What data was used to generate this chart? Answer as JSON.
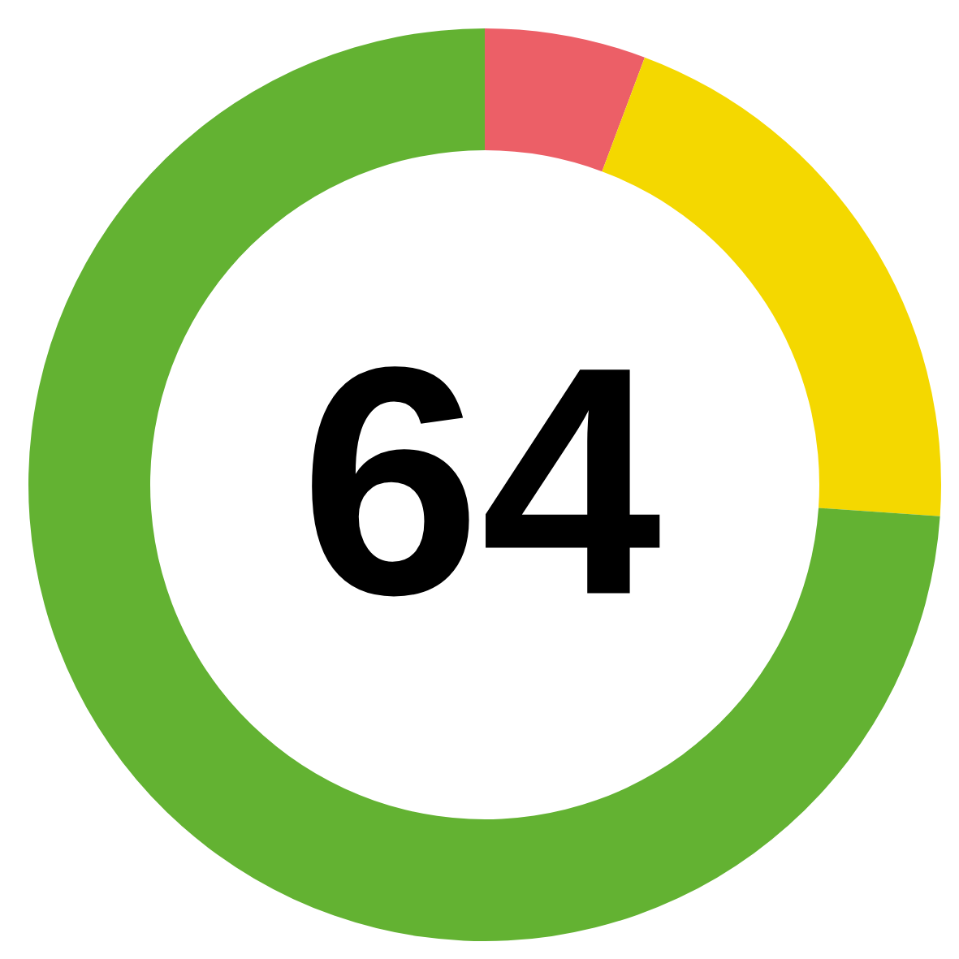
{
  "chart_data": {
    "type": "donut",
    "categories": [
      null,
      null,
      null
    ],
    "values": [
      5.7,
      20.4,
      73.9
    ],
    "colors": [
      "#ec5f67",
      "#f4d800",
      "#63b232"
    ],
    "annotations": [
      "64"
    ]
  }
}
